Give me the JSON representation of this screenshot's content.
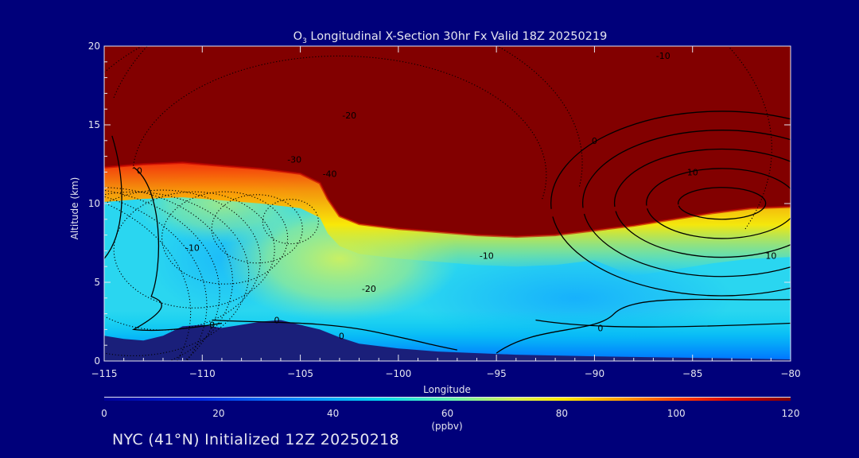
{
  "chart_data": {
    "type": "heatmap",
    "title": {
      "species": "O",
      "species_sub": "3",
      "rest": " Longitudinal X-Section 30hr  Fx Valid 18Z 20250219"
    },
    "xlabel": "Longitude",
    "ylabel": "Altitude (km)",
    "xlim": [
      -115,
      -80
    ],
    "ylim": [
      0,
      20
    ],
    "xticks": [
      -115,
      -110,
      -105,
      -100,
      -95,
      -90,
      -85,
      -80
    ],
    "xtick_labels": [
      "−115",
      "−110",
      "−105",
      "−100",
      "−95",
      "−90",
      "−85",
      "−80"
    ],
    "yticks": [
      0,
      5,
      10,
      15,
      20
    ],
    "colorbar": {
      "min": 0,
      "max": 120,
      "ticks": [
        0,
        20,
        40,
        60,
        80,
        100,
        120
      ],
      "label": "(ppbv)"
    },
    "ozone_field": {
      "tropopause_km": [
        [
          -115,
          12.3
        ],
        [
          -113,
          12.5
        ],
        [
          -111,
          12.6
        ],
        [
          -109,
          12.4
        ],
        [
          -107,
          12.2
        ],
        [
          -105,
          11.9
        ],
        [
          -104,
          11.3
        ],
        [
          -103.6,
          10.3
        ],
        [
          -103,
          9.2
        ],
        [
          -102,
          8.7
        ],
        [
          -100,
          8.4
        ],
        [
          -98,
          8.2
        ],
        [
          -96,
          8.0
        ],
        [
          -94,
          7.9
        ],
        [
          -92,
          8.0
        ],
        [
          -90,
          8.3
        ],
        [
          -88,
          8.6
        ],
        [
          -86,
          9.0
        ],
        [
          -84,
          9.4
        ],
        [
          -82,
          9.7
        ],
        [
          -80,
          9.8
        ]
      ],
      "terrain_km": [
        [
          -115,
          1.6
        ],
        [
          -114,
          1.4
        ],
        [
          -113,
          1.3
        ],
        [
          -112,
          1.6
        ],
        [
          -111,
          2.2
        ],
        [
          -110,
          2.3
        ],
        [
          -109,
          2.1
        ],
        [
          -108,
          2.3
        ],
        [
          -107,
          2.5
        ],
        [
          -106,
          2.6
        ],
        [
          -105,
          2.3
        ],
        [
          -104,
          2.0
        ],
        [
          -103,
          1.5
        ],
        [
          -102,
          1.1
        ],
        [
          -100,
          0.8
        ],
        [
          -98,
          0.6
        ],
        [
          -96,
          0.5
        ],
        [
          -94,
          0.4
        ],
        [
          -90,
          0.3
        ],
        [
          -85,
          0.2
        ],
        [
          -80,
          0.1
        ]
      ]
    },
    "wind_contours": [
      {
        "level": "-40",
        "labels": [
          {
            "x": -103.5,
            "y": 11.9
          }
        ]
      },
      {
        "level": "-30",
        "labels": [
          {
            "x": -105.3,
            "y": 12.8
          }
        ]
      },
      {
        "level": "-20",
        "labels": [
          {
            "x": -102.5,
            "y": 15.6
          },
          {
            "x": -101.5,
            "y": 4.6
          }
        ]
      },
      {
        "level": "-10",
        "labels": [
          {
            "x": -110.5,
            "y": 7.2
          },
          {
            "x": -95.5,
            "y": 6.7
          },
          {
            "x": -86.5,
            "y": 19.4
          }
        ]
      },
      {
        "level": "0",
        "labels": [
          {
            "x": -113.2,
            "y": 12.1
          },
          {
            "x": -109.5,
            "y": 2.3
          },
          {
            "x": -106.2,
            "y": 2.6
          },
          {
            "x": -102.9,
            "y": 1.6
          },
          {
            "x": -90.0,
            "y": 14.0
          },
          {
            "x": -89.7,
            "y": 2.1
          }
        ]
      },
      {
        "level": "10",
        "labels": [
          {
            "x": -85.0,
            "y": 12.0
          },
          {
            "x": -81.0,
            "y": 6.7
          }
        ]
      }
    ],
    "footer": "NYC (41°N) Initialized 12Z 20250218"
  }
}
